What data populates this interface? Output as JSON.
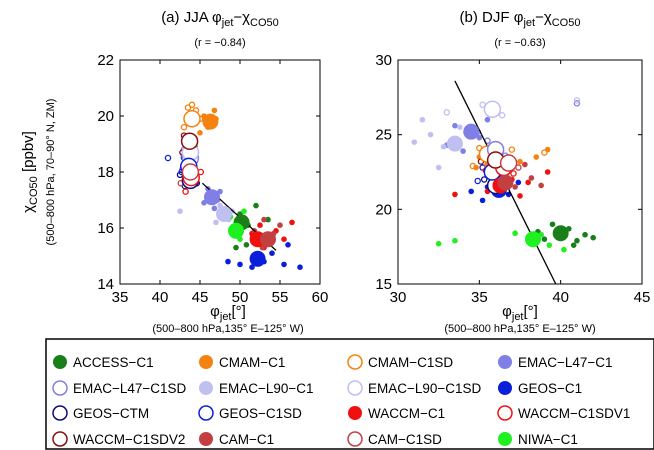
{
  "shared": {
    "ylabel_main": "χ",
    "ylabel_sub": "CO50",
    "ylabel_unit": " [ppbv]",
    "ylabel_note": "(500–800 hPa, 70–90° N, ZM)",
    "xlabel_main": "φ",
    "xlabel_sub": "jet",
    "xlabel_unit": "[°]",
    "xlabel_note": "(500–800 hPa,135° E–125° W)"
  },
  "legend": {
    "items": [
      {
        "label": "ACCESS−C1",
        "color": "#1a7f1a",
        "filled": true
      },
      {
        "label": "CMAM−C1",
        "color": "#f5820f",
        "filled": true
      },
      {
        "label": "CMAM−C1SD",
        "color": "#f5820f",
        "filled": false
      },
      {
        "label": "EMAC−L47−C1",
        "color": "#7f7fe6",
        "filled": true
      },
      {
        "label": "EMAC−L47−C1SD",
        "color": "#7f7fe6",
        "filled": false
      },
      {
        "label": "EMAC−L90−C1",
        "color": "#bfbff2",
        "filled": true
      },
      {
        "label": "EMAC−L90−C1SD",
        "color": "#bfbff2",
        "filled": false
      },
      {
        "label": "GEOS−C1",
        "color": "#0a1fd9",
        "filled": true
      },
      {
        "label": "GEOS−CTM",
        "color": "#0a0a80",
        "filled": false
      },
      {
        "label": "GEOS−C1SD",
        "color": "#0a1fd9",
        "filled": false
      },
      {
        "label": "WACCM−C1",
        "color": "#f01010",
        "filled": true
      },
      {
        "label": "WACCM−C1SDV1",
        "color": "#f01010",
        "filled": false
      },
      {
        "label": "WACCM−C1SDV2",
        "color": "#8b0d0d",
        "filled": false
      },
      {
        "label": "CAM−C1",
        "color": "#c24040",
        "filled": true
      },
      {
        "label": "CAM−C1SD",
        "color": "#c24040",
        "filled": false
      },
      {
        "label": "NIWA−C1",
        "color": "#1ff01f",
        "filled": true
      }
    ]
  },
  "chart_data": [
    {
      "type": "scatter",
      "title_prefix": "(a) JJA ",
      "title_main": "φ",
      "title_sub1": "jet",
      "title_mid": "−χ",
      "title_sub2": "CO50",
      "subtitle": "(r = −0.84)",
      "xlim": [
        35,
        60
      ],
      "ylim": [
        14,
        22
      ],
      "xticks": [
        "35",
        "40",
        "45",
        "50",
        "55",
        "60"
      ],
      "yticks": [
        "14",
        "16",
        "18",
        "20",
        "22"
      ],
      "regression": [
        [
          45.3,
          17.6
        ],
        [
          54.5,
          15.2
        ]
      ],
      "series": [
        {
          "model": "ACCESS−C1",
          "mean": [
            50.2,
            16.2
          ],
          "points": [
            [
              50.0,
              16.5
            ],
            [
              51.0,
              16.1
            ],
            [
              52.5,
              15.7
            ],
            [
              53.5,
              16.3
            ],
            [
              50.8,
              15.4
            ],
            [
              49.5,
              15.3
            ],
            [
              52.0,
              16.8
            ]
          ]
        },
        {
          "model": "CMAM−C1",
          "mean": [
            46.3,
            19.8
          ],
          "points": [
            [
              45.5,
              20.0
            ],
            [
              46.0,
              19.6
            ],
            [
              47.0,
              19.9
            ],
            [
              45.0,
              19.4
            ],
            [
              46.8,
              20.2
            ]
          ]
        },
        {
          "model": "CMAM−C1SD",
          "mean": [
            44.0,
            19.9
          ],
          "points": [
            [
              43.5,
              20.3
            ],
            [
              44.5,
              20.2
            ],
            [
              43.0,
              19.6
            ],
            [
              45.0,
              19.9
            ],
            [
              44.0,
              20.4
            ],
            [
              43.2,
              19.1
            ]
          ]
        },
        {
          "model": "EMAC−L47−C1",
          "mean": [
            46.5,
            17.1
          ],
          "points": [
            [
              46.0,
              17.4
            ],
            [
              47.2,
              17.0
            ],
            [
              45.5,
              16.9
            ],
            [
              47.5,
              17.3
            ],
            [
              46.8,
              16.7
            ]
          ]
        },
        {
          "model": "EMAC−L47−C1SD",
          "mean": [
            43.8,
            18.5
          ],
          "points": [
            [
              43.0,
              18.8
            ],
            [
              44.2,
              18.3
            ],
            [
              42.8,
              18.1
            ],
            [
              44.5,
              18.7
            ]
          ]
        },
        {
          "model": "EMAC−L90−C1",
          "mean": [
            48.0,
            16.5
          ],
          "points": [
            [
              47.5,
              16.8
            ],
            [
              48.6,
              16.3
            ],
            [
              47.0,
              16.2
            ],
            [
              49.0,
              16.6
            ],
            [
              42.5,
              16.6
            ]
          ]
        },
        {
          "model": "EMAC−L90−C1SD",
          "mean": [
            43.8,
            18.7
          ],
          "points": [
            [
              43.2,
              19.2
            ],
            [
              44.3,
              18.9
            ],
            [
              42.9,
              18.6
            ]
          ]
        },
        {
          "model": "GEOS−C1",
          "mean": [
            52.2,
            14.9
          ],
          "points": [
            [
              51.5,
              14.6
            ],
            [
              53.0,
              14.8
            ],
            [
              54.0,
              15.1
            ],
            [
              55.5,
              14.7
            ],
            [
              57.5,
              14.6
            ],
            [
              50.0,
              14.7
            ],
            [
              48.5,
              14.8
            ],
            [
              56.0,
              15.4
            ]
          ]
        },
        {
          "model": "GEOS−CTM",
          "mean": [
            43.8,
            17.7
          ],
          "points": [
            [
              42.5,
              17.9
            ],
            [
              43.1,
              17.5
            ],
            [
              44.6,
              17.6
            ]
          ]
        },
        {
          "model": "GEOS−C1SD",
          "mean": [
            43.6,
            18.2
          ],
          "points": [
            [
              43.0,
              18.5
            ],
            [
              42.7,
              18.0
            ],
            [
              44.2,
              18.1
            ],
            [
              41.0,
              18.5
            ]
          ]
        },
        {
          "model": "WACCM−C1",
          "mean": [
            52.2,
            15.6
          ],
          "points": [
            [
              51.5,
              15.8
            ],
            [
              53.0,
              15.3
            ],
            [
              54.5,
              15.9
            ],
            [
              55.5,
              15.6
            ],
            [
              56.5,
              16.2
            ],
            [
              52.5,
              16.1
            ]
          ]
        },
        {
          "model": "WACCM−C1SDV1",
          "mean": [
            43.9,
            17.8
          ],
          "points": [
            [
              43.2,
              17.3
            ],
            [
              44.5,
              17.9
            ],
            [
              42.9,
              18.2
            ],
            [
              45.1,
              18.0
            ]
          ]
        },
        {
          "model": "WACCM−C1SDV2",
          "mean": [
            43.7,
            19.1
          ],
          "points": [
            [
              43.0,
              19.3
            ],
            [
              44.3,
              18.9
            ],
            [
              42.8,
              18.7
            ]
          ]
        },
        {
          "model": "CAM−C1",
          "mean": [
            53.5,
            15.6
          ],
          "points": [
            [
              52.8,
              15.3
            ],
            [
              54.2,
              15.8
            ],
            [
              53.0,
              16.3
            ],
            [
              55.0,
              16.1
            ],
            [
              51.8,
              15.9
            ]
          ]
        },
        {
          "model": "CAM−C1SD",
          "mean": [
            43.8,
            18.0
          ],
          "points": [
            [
              43.3,
              18.3
            ],
            [
              44.4,
              17.7
            ],
            [
              42.6,
              17.6
            ]
          ]
        },
        {
          "model": "NIWA−C1",
          "mean": [
            49.5,
            15.9
          ],
          "points": [
            [
              49.0,
              16.0
            ],
            [
              50.0,
              15.6
            ],
            [
              48.8,
              16.4
            ],
            [
              50.5,
              16.6
            ]
          ]
        }
      ]
    },
    {
      "type": "scatter",
      "title_prefix": "(b) DJF ",
      "title_main": "φ",
      "title_sub1": "jet",
      "title_mid": "−χ",
      "title_sub2": "CO50",
      "subtitle": "(r = −0.63)",
      "xlim": [
        30,
        45
      ],
      "ylim": [
        15,
        30
      ],
      "xticks": [
        "30",
        "35",
        "40",
        "45"
      ],
      "yticks": [
        "15",
        "20",
        "25",
        "30"
      ],
      "regression": [
        [
          33.5,
          28.6
        ],
        [
          39.7,
          15.0
        ]
      ],
      "series": [
        {
          "model": "ACCESS−C1",
          "mean": [
            40.0,
            18.4
          ],
          "points": [
            [
              39.0,
              18.0
            ],
            [
              40.5,
              18.7
            ],
            [
              41.0,
              17.9
            ],
            [
              42.0,
              18.1
            ],
            [
              39.5,
              19.0
            ],
            [
              38.6,
              18.5
            ],
            [
              41.5,
              18.3
            ],
            [
              40.8,
              17.6
            ]
          ]
        },
        {
          "model": "CMAM−C1",
          "mean": [
            35.8,
            23.0
          ],
          "points": [
            [
              35.0,
              23.5
            ],
            [
              36.5,
              22.6
            ],
            [
              37.5,
              23.2
            ],
            [
              34.8,
              22.8
            ],
            [
              38.5,
              23.5
            ],
            [
              39.2,
              24.0
            ]
          ]
        },
        {
          "model": "CMAM−C1SD",
          "mean": [
            35.5,
            23.7
          ],
          "points": [
            [
              35.0,
              24.1
            ],
            [
              36.0,
              23.3
            ],
            [
              37.0,
              24.0
            ],
            [
              34.6,
              22.9
            ],
            [
              39.0,
              23.8
            ]
          ]
        },
        {
          "model": "EMAC−L47−C1",
          "mean": [
            34.5,
            25.2
          ],
          "points": [
            [
              33.5,
              25.6
            ],
            [
              35.0,
              24.8
            ],
            [
              34.0,
              23.9
            ],
            [
              35.5,
              26.0
            ],
            [
              33.0,
              24.3
            ]
          ]
        },
        {
          "model": "EMAC−L47−C1SD",
          "mean": [
            36.0,
            24.0
          ],
          "points": [
            [
              35.5,
              24.6
            ],
            [
              36.6,
              23.6
            ],
            [
              34.9,
              25.2
            ],
            [
              41.0,
              27.1
            ]
          ]
        },
        {
          "model": "EMAC−L90−C1",
          "mean": [
            33.5,
            24.4
          ],
          "points": [
            [
              32.0,
              25.0
            ],
            [
              32.8,
              24.2
            ],
            [
              33.8,
              25.5
            ],
            [
              31.5,
              26.0
            ],
            [
              31.0,
              24.5
            ],
            [
              32.5,
              22.8
            ]
          ]
        },
        {
          "model": "EMAC−L90−C1SD",
          "mean": [
            35.8,
            26.7
          ],
          "points": [
            [
              35.2,
              27.0
            ],
            [
              36.4,
              26.3
            ],
            [
              41.0,
              27.3
            ],
            [
              33.0,
              26.5
            ]
          ]
        },
        {
          "model": "GEOS−C1",
          "mean": [
            36.2,
            21.3
          ],
          "points": [
            [
              35.5,
              21.5
            ],
            [
              36.8,
              21.0
            ],
            [
              34.5,
              21.2
            ],
            [
              37.4,
              21.8
            ],
            [
              35.2,
              20.6
            ]
          ]
        },
        {
          "model": "GEOS−CTM",
          "mean": [
            36.0,
            21.6
          ],
          "points": [
            [
              35.3,
              22.0
            ],
            [
              36.7,
              21.2
            ],
            [
              35.8,
              22.3
            ]
          ]
        },
        {
          "model": "GEOS−C1SD",
          "mean": [
            35.8,
            22.5
          ],
          "points": [
            [
              35.2,
              22.8
            ],
            [
              36.4,
              22.1
            ],
            [
              34.9,
              21.9
            ]
          ]
        },
        {
          "model": "WACCM−C1",
          "mean": [
            36.3,
            21.6
          ],
          "points": [
            [
              35.5,
              21.2
            ],
            [
              37.0,
              22.0
            ],
            [
              38.0,
              21.8
            ],
            [
              37.5,
              20.9
            ],
            [
              33.5,
              21.0
            ],
            [
              39.2,
              22.5
            ]
          ]
        },
        {
          "model": "WACCM−C1SDV1",
          "mean": [
            36.5,
            22.8
          ],
          "points": [
            [
              35.9,
              23.2
            ],
            [
              37.1,
              22.4
            ],
            [
              35.4,
              22.6
            ]
          ]
        },
        {
          "model": "WACCM−C1SDV2",
          "mean": [
            36.0,
            23.3
          ],
          "points": [
            [
              35.4,
              23.6
            ],
            [
              36.6,
              23.0
            ],
            [
              35.1,
              23.2
            ]
          ]
        },
        {
          "model": "CAM−C1",
          "mean": [
            36.6,
            21.8
          ],
          "points": [
            [
              36.0,
              22.2
            ],
            [
              37.2,
              21.5
            ],
            [
              38.2,
              22.1
            ],
            [
              38.8,
              21.6
            ],
            [
              37.8,
              23.0
            ]
          ]
        },
        {
          "model": "CAM−C1SD",
          "mean": [
            36.8,
            23.1
          ],
          "points": [
            [
              36.2,
              23.4
            ],
            [
              37.4,
              22.8
            ],
            [
              35.9,
              22.9
            ]
          ]
        },
        {
          "model": "NIWA−C1",
          "mean": [
            38.3,
            18.0
          ],
          "points": [
            [
              38.8,
              18.3
            ],
            [
              39.3,
              17.6
            ],
            [
              40.2,
              17.3
            ],
            [
              37.2,
              18.4
            ],
            [
              33.5,
              17.9
            ],
            [
              32.5,
              17.7
            ]
          ]
        }
      ]
    }
  ]
}
